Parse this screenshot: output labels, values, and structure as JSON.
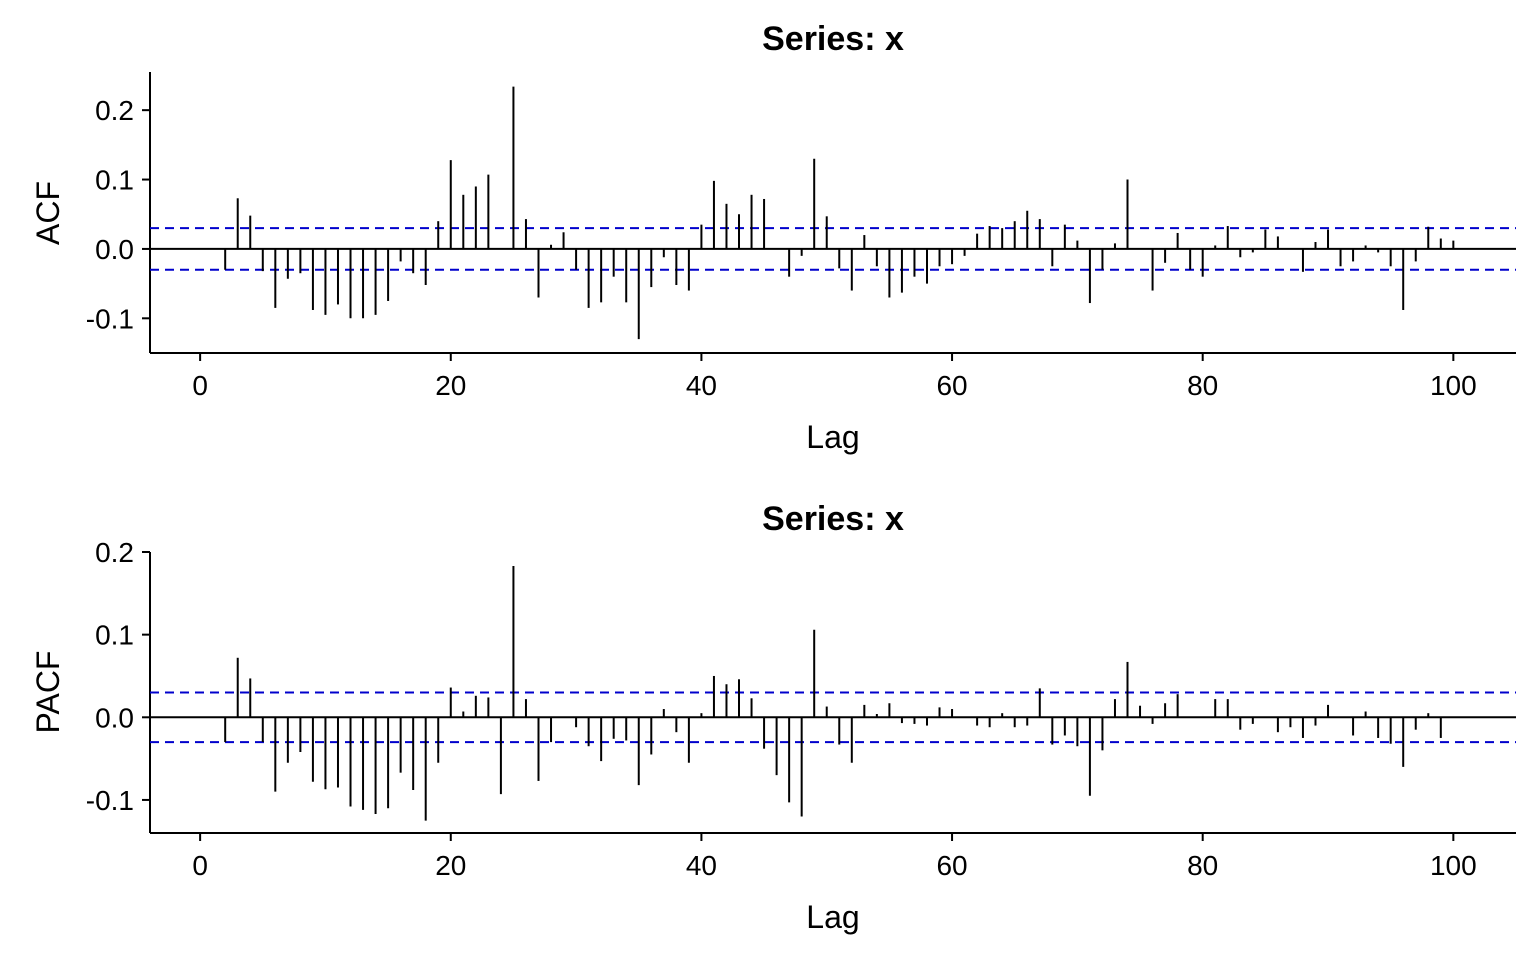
{
  "chart_data": [
    {
      "type": "bar",
      "title": "Series: x",
      "xlabel": "Lag",
      "ylabel": "ACF",
      "xlim": [
        -4,
        105
      ],
      "ylim": [
        -0.15,
        0.255
      ],
      "xticks": [
        0,
        20,
        40,
        60,
        80,
        100
      ],
      "xtick_labels": [
        "0",
        "20",
        "40",
        "60",
        "80",
        "100"
      ],
      "yticks": [
        -0.1,
        0.0,
        0.1,
        0.2
      ],
      "ytick_labels": [
        "-0.1",
        "0.0",
        "0.1",
        "0.2"
      ],
      "ci": 0.03,
      "ci_color": "#0000cc",
      "grid": false,
      "series": [
        {
          "x": [
            1,
            2,
            3,
            4,
            5,
            6,
            7,
            8,
            9,
            10,
            11,
            12,
            13,
            14,
            15,
            16,
            17,
            18,
            19,
            20,
            21,
            22,
            23,
            24,
            25,
            26,
            27,
            28,
            29,
            30,
            31,
            32,
            33,
            34,
            35,
            36,
            37,
            38,
            39,
            40,
            41,
            42,
            43,
            44,
            45,
            46,
            47,
            48,
            49,
            50,
            51,
            52,
            53,
            54,
            55,
            56,
            57,
            58,
            59,
            60,
            61,
            62,
            63,
            64,
            65,
            66,
            67,
            68,
            69,
            70,
            71,
            72,
            73,
            74,
            75,
            76,
            77,
            78,
            79,
            80,
            81,
            82,
            83,
            84,
            85,
            86,
            87,
            88,
            89,
            90,
            91,
            92,
            93,
            94,
            95,
            96,
            97,
            98,
            99,
            100
          ],
          "values": [
            0.0,
            -0.03,
            0.073,
            0.048,
            -0.032,
            -0.085,
            -0.043,
            -0.035,
            -0.088,
            -0.095,
            -0.08,
            -0.1,
            -0.1,
            -0.095,
            -0.075,
            -0.018,
            -0.035,
            -0.052,
            0.04,
            0.128,
            0.078,
            0.09,
            0.107,
            0.0,
            0.234,
            0.043,
            -0.07,
            0.006,
            0.024,
            -0.03,
            -0.085,
            -0.077,
            -0.04,
            -0.077,
            -0.13,
            -0.055,
            -0.012,
            -0.052,
            -0.06,
            0.035,
            0.098,
            0.065,
            0.05,
            0.078,
            0.072,
            0.0,
            -0.04,
            -0.01,
            0.13,
            0.047,
            -0.028,
            -0.06,
            0.02,
            -0.025,
            -0.07,
            -0.063,
            -0.04,
            -0.05,
            -0.025,
            -0.022,
            -0.01,
            0.022,
            0.033,
            0.03,
            0.04,
            0.055,
            0.043,
            -0.025,
            0.035,
            0.012,
            -0.078,
            -0.03,
            0.008,
            0.1,
            0.0,
            -0.06,
            -0.02,
            0.023,
            -0.03,
            -0.04,
            0.005,
            0.033,
            -0.012,
            -0.005,
            0.028,
            0.018,
            0.0,
            -0.033,
            0.01,
            0.028,
            -0.025,
            -0.018,
            0.005,
            -0.005,
            -0.025,
            -0.088,
            -0.018,
            0.032,
            0.015,
            0.012
          ]
        }
      ]
    },
    {
      "type": "bar",
      "title": "Series: x",
      "xlabel": "Lag",
      "ylabel": "PACF",
      "xlim": [
        -4,
        105
      ],
      "ylim": [
        -0.14,
        0.2
      ],
      "xticks": [
        0,
        20,
        40,
        60,
        80,
        100
      ],
      "xtick_labels": [
        "0",
        "20",
        "40",
        "60",
        "80",
        "100"
      ],
      "yticks": [
        -0.1,
        0.0,
        0.1,
        0.2
      ],
      "ytick_labels": [
        "-0.1",
        "0.0",
        "0.1",
        "0.2"
      ],
      "ci": 0.03,
      "ci_color": "#0000cc",
      "grid": false,
      "series": [
        {
          "x": [
            1,
            2,
            3,
            4,
            5,
            6,
            7,
            8,
            9,
            10,
            11,
            12,
            13,
            14,
            15,
            16,
            17,
            18,
            19,
            20,
            21,
            22,
            23,
            24,
            25,
            26,
            27,
            28,
            29,
            30,
            31,
            32,
            33,
            34,
            35,
            36,
            37,
            38,
            39,
            40,
            41,
            42,
            43,
            44,
            45,
            46,
            47,
            48,
            49,
            50,
            51,
            52,
            53,
            54,
            55,
            56,
            57,
            58,
            59,
            60,
            61,
            62,
            63,
            64,
            65,
            66,
            67,
            68,
            69,
            70,
            71,
            72,
            73,
            74,
            75,
            76,
            77,
            78,
            79,
            80,
            81,
            82,
            83,
            84,
            85,
            86,
            87,
            88,
            89,
            90,
            91,
            92,
            93,
            94,
            95,
            96,
            97,
            98,
            99
          ],
          "values": [
            0.0,
            -0.03,
            0.072,
            0.047,
            -0.03,
            -0.09,
            -0.055,
            -0.042,
            -0.078,
            -0.087,
            -0.085,
            -0.108,
            -0.112,
            -0.117,
            -0.11,
            -0.067,
            -0.088,
            -0.125,
            -0.055,
            0.036,
            0.007,
            0.026,
            0.024,
            -0.093,
            0.183,
            0.022,
            -0.077,
            -0.03,
            0.0,
            -0.012,
            -0.035,
            -0.053,
            -0.026,
            -0.028,
            -0.082,
            -0.045,
            0.01,
            -0.018,
            -0.055,
            0.005,
            0.05,
            0.04,
            0.046,
            0.023,
            -0.038,
            -0.07,
            -0.103,
            -0.12,
            0.106,
            0.013,
            -0.033,
            -0.055,
            0.015,
            0.004,
            0.017,
            -0.007,
            -0.008,
            -0.01,
            0.012,
            0.01,
            0.0,
            -0.01,
            -0.012,
            0.005,
            -0.012,
            -0.01,
            0.035,
            -0.033,
            -0.022,
            -0.035,
            -0.095,
            -0.04,
            0.022,
            0.067,
            0.014,
            -0.008,
            0.017,
            0.028,
            0.0,
            0.0,
            0.022,
            0.022,
            -0.015,
            -0.008,
            0.0,
            -0.018,
            -0.012,
            -0.025,
            -0.01,
            0.015,
            0.0,
            -0.022,
            0.007,
            -0.025,
            -0.032,
            -0.06,
            -0.015,
            0.005,
            -0.025
          ]
        }
      ]
    }
  ]
}
